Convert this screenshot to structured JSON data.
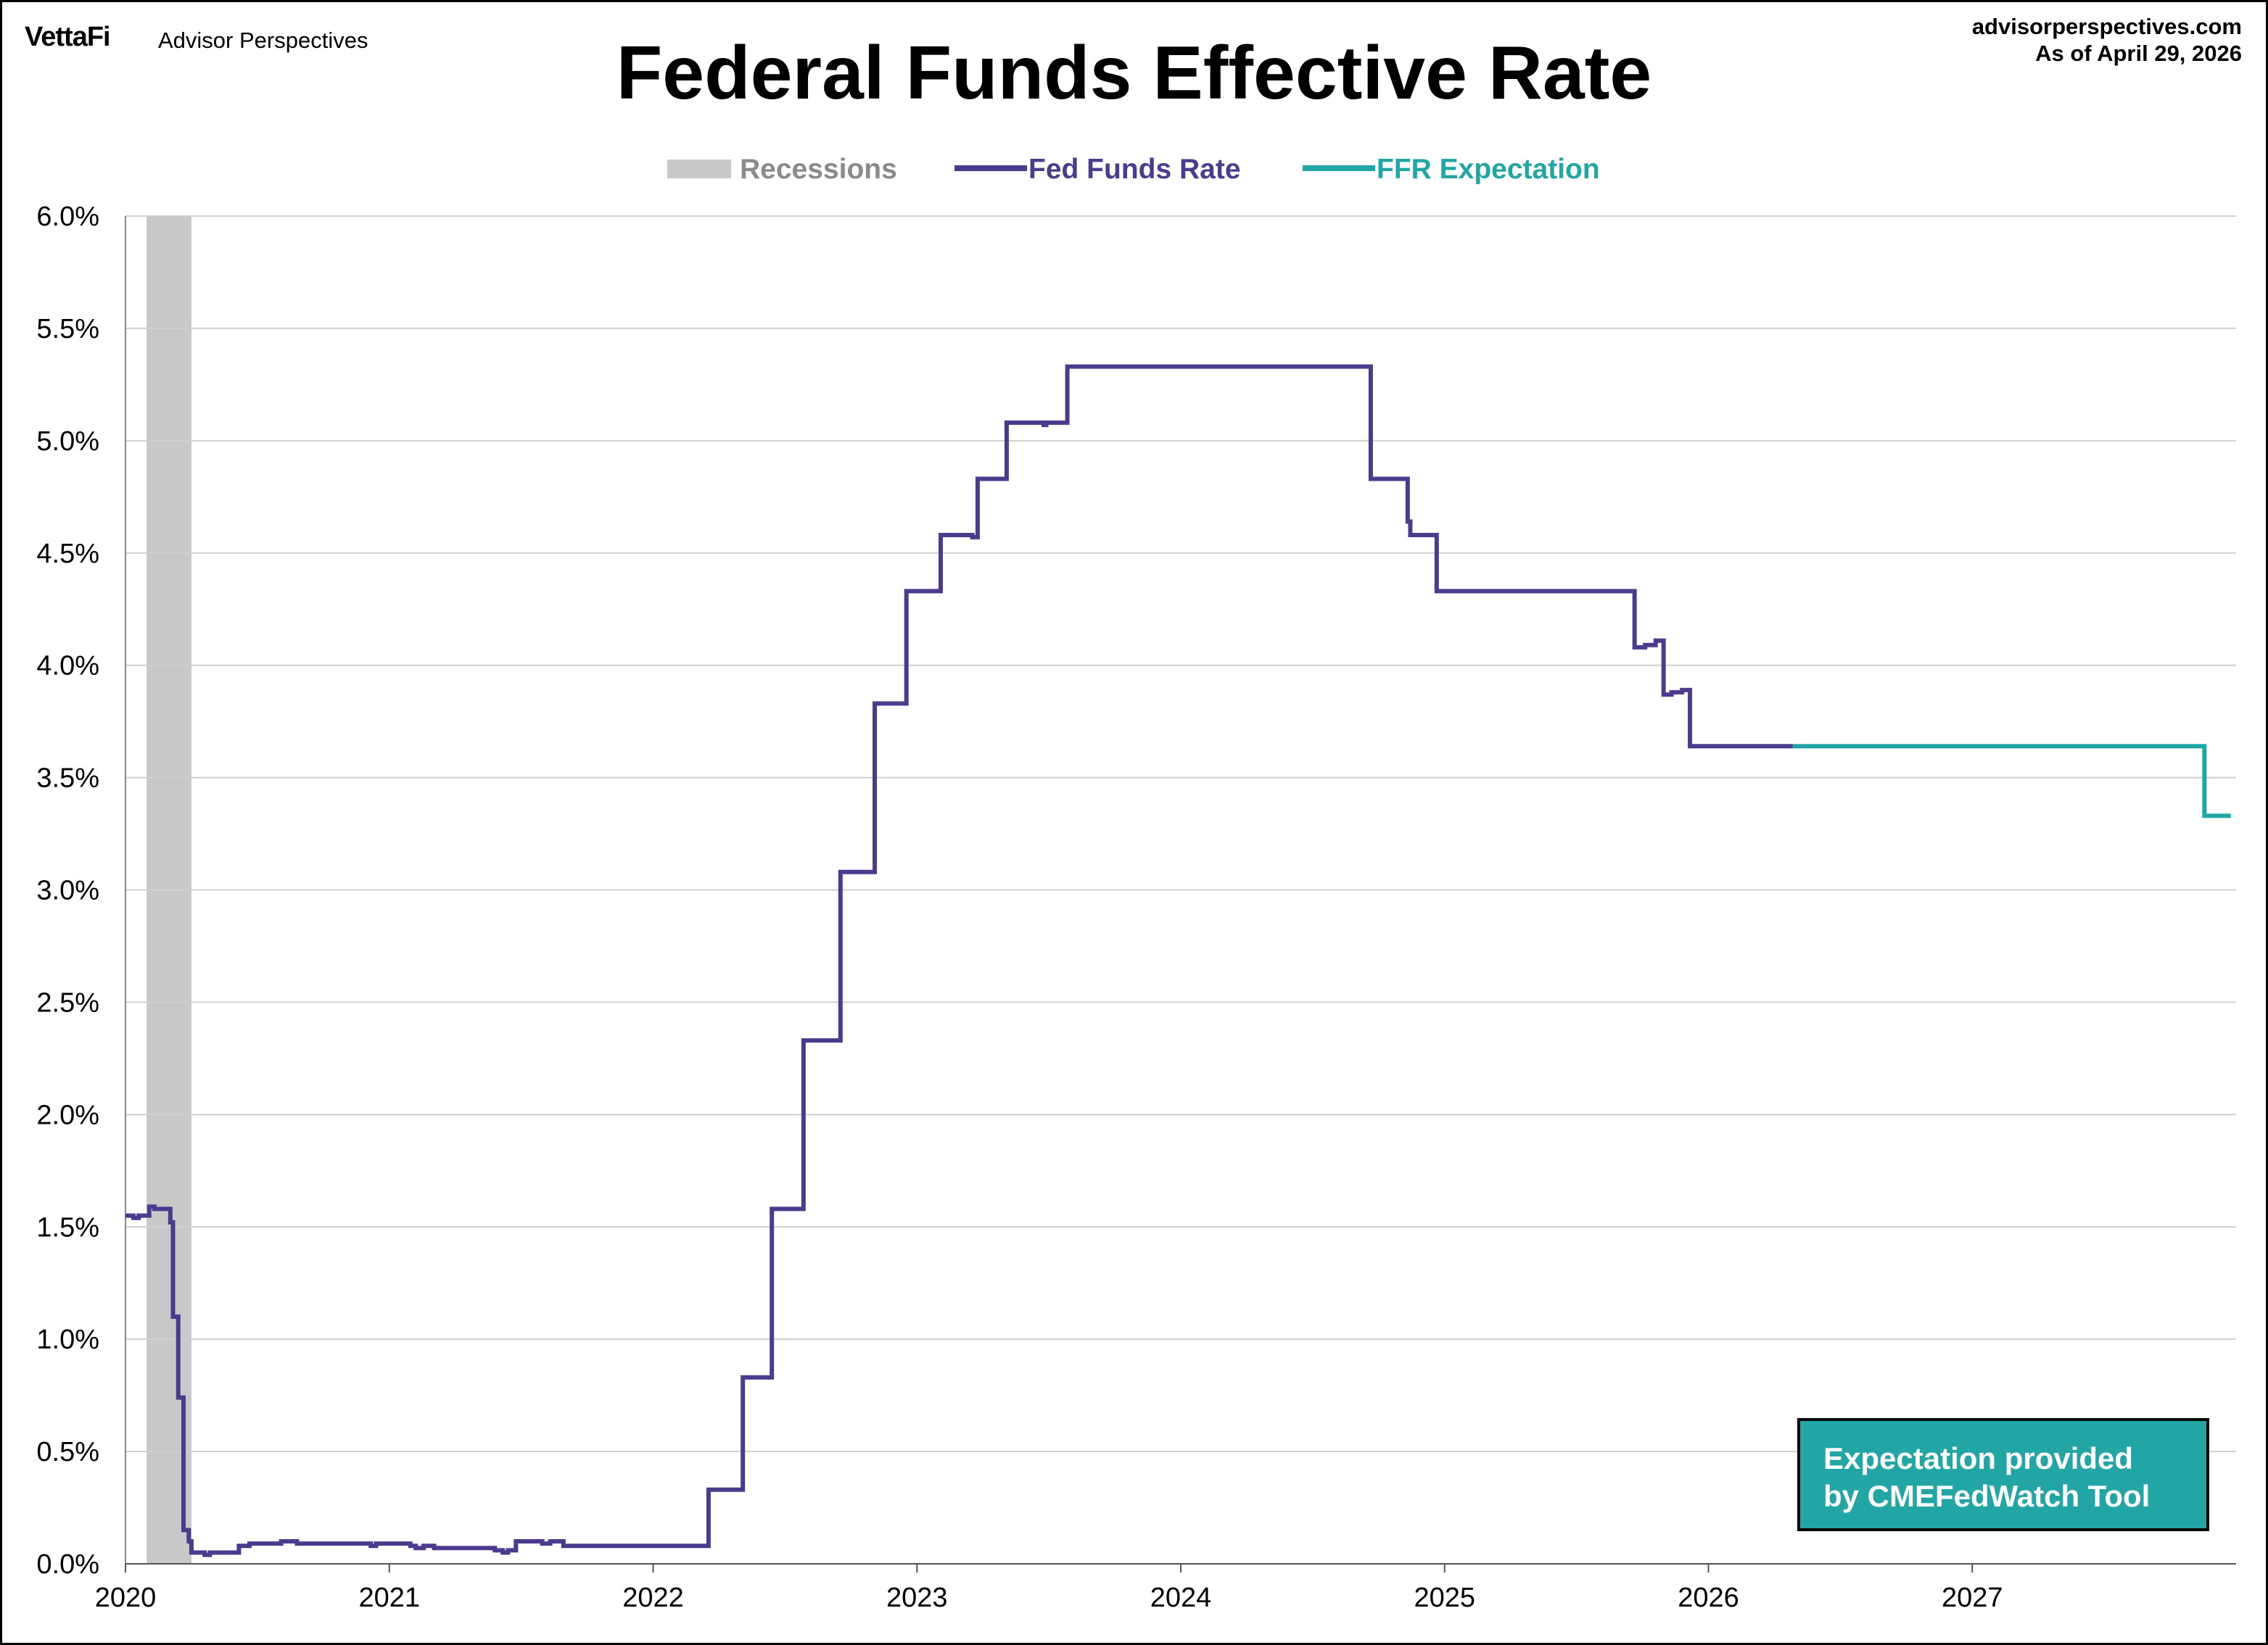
{
  "header": {
    "logo": "VettaFi",
    "brand": "Advisor Perspectives",
    "site": "advisorperspectives.com",
    "as_of": "As of April 29, 2026"
  },
  "chart_data": {
    "type": "line",
    "title": "Federal Funds Effective Rate",
    "xlabel": "",
    "ylabel": "",
    "xlim": [
      2020.0,
      2028.0
    ],
    "ylim": [
      0.0,
      6.0
    ],
    "grid": "horizontal",
    "legend": {
      "placement": "top-center",
      "items": [
        {
          "label": "Recessions",
          "color": "#C8C8C8"
        },
        {
          "label": "Fed Funds Rate",
          "color": "#4B3A8E"
        },
        {
          "label": "FFR Expectation",
          "color": "#21A5A5"
        }
      ]
    },
    "x_ticks": [
      {
        "value": 2020,
        "label": "2020"
      },
      {
        "value": 2021,
        "label": "2021"
      },
      {
        "value": 2022,
        "label": "2022"
      },
      {
        "value": 2023,
        "label": "2023"
      },
      {
        "value": 2024,
        "label": "2024"
      },
      {
        "value": 2025,
        "label": "2025"
      },
      {
        "value": 2026,
        "label": "2026"
      },
      {
        "value": 2027,
        "label": "2027"
      }
    ],
    "y_ticks": [
      {
        "value": 0.0,
        "label": "0.0%"
      },
      {
        "value": 0.5,
        "label": "0.5%"
      },
      {
        "value": 1.0,
        "label": "1.0%"
      },
      {
        "value": 1.5,
        "label": "1.5%"
      },
      {
        "value": 2.0,
        "label": "2.0%"
      },
      {
        "value": 2.5,
        "label": "2.5%"
      },
      {
        "value": 3.0,
        "label": "3.0%"
      },
      {
        "value": 3.5,
        "label": "3.5%"
      },
      {
        "value": 4.0,
        "label": "4.0%"
      },
      {
        "value": 4.5,
        "label": "4.5%"
      },
      {
        "value": 5.0,
        "label": "5.0%"
      },
      {
        "value": 5.5,
        "label": "5.5%"
      },
      {
        "value": 6.0,
        "label": "6.0%"
      }
    ],
    "recessions": [
      {
        "start": 2020.08,
        "end": 2020.25
      }
    ],
    "series": [
      {
        "name": "Fed Funds Rate",
        "color": "#4B3A8E",
        "step": true,
        "points": [
          [
            2020.0,
            1.55
          ],
          [
            2020.03,
            1.54
          ],
          [
            2020.05,
            1.55
          ],
          [
            2020.09,
            1.59
          ],
          [
            2020.11,
            1.58
          ],
          [
            2020.17,
            1.52
          ],
          [
            2020.18,
            1.1
          ],
          [
            2020.2,
            0.74
          ],
          [
            2020.22,
            0.15
          ],
          [
            2020.24,
            0.1
          ],
          [
            2020.25,
            0.05
          ],
          [
            2020.3,
            0.04
          ],
          [
            2020.32,
            0.05
          ],
          [
            2020.43,
            0.08
          ],
          [
            2020.47,
            0.09
          ],
          [
            2020.5,
            0.09
          ],
          [
            2020.59,
            0.1
          ],
          [
            2020.65,
            0.09
          ],
          [
            2020.9,
            0.09
          ],
          [
            2020.93,
            0.08
          ],
          [
            2020.95,
            0.09
          ],
          [
            2021.08,
            0.08
          ],
          [
            2021.1,
            0.07
          ],
          [
            2021.13,
            0.08
          ],
          [
            2021.17,
            0.07
          ],
          [
            2021.4,
            0.06
          ],
          [
            2021.43,
            0.05
          ],
          [
            2021.45,
            0.06
          ],
          [
            2021.48,
            0.1
          ],
          [
            2021.58,
            0.09
          ],
          [
            2021.61,
            0.1
          ],
          [
            2021.66,
            0.08
          ],
          [
            2022.21,
            0.33
          ],
          [
            2022.34,
            0.83
          ],
          [
            2022.45,
            1.58
          ],
          [
            2022.57,
            2.33
          ],
          [
            2022.71,
            3.08
          ],
          [
            2022.84,
            3.83
          ],
          [
            2022.96,
            4.33
          ],
          [
            2023.09,
            4.58
          ],
          [
            2023.21,
            4.57
          ],
          [
            2023.23,
            4.83
          ],
          [
            2023.34,
            5.08
          ],
          [
            2023.48,
            5.07
          ],
          [
            2023.49,
            5.08
          ],
          [
            2023.57,
            5.33
          ],
          [
            2024.72,
            4.83
          ],
          [
            2024.86,
            4.64
          ],
          [
            2024.87,
            4.58
          ],
          [
            2024.97,
            4.33
          ],
          [
            2025.72,
            4.08
          ],
          [
            2025.76,
            4.09
          ],
          [
            2025.8,
            4.11
          ],
          [
            2025.83,
            3.87
          ],
          [
            2025.86,
            3.88
          ],
          [
            2025.9,
            3.89
          ],
          [
            2025.93,
            3.64
          ],
          [
            2026.32,
            3.64
          ]
        ]
      },
      {
        "name": "FFR Expectation",
        "color": "#21A5A5",
        "step": true,
        "points": [
          [
            2026.32,
            3.64
          ],
          [
            2027.88,
            3.33
          ],
          [
            2027.98,
            3.33
          ]
        ]
      }
    ]
  },
  "note": {
    "line1": "Expectation provided",
    "line2": "by CMEFedWatch Tool"
  }
}
